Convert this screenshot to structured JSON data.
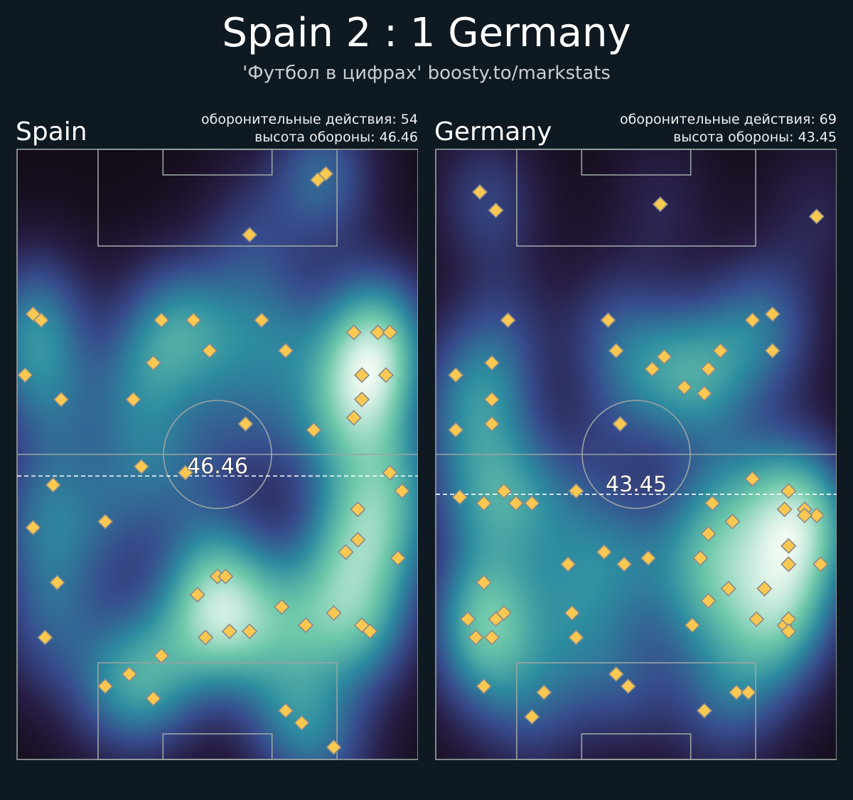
{
  "header": {
    "title": "Spain 2 : 1 Germany",
    "subtitle": "'Футбол в цифрах' boosty.to/markstats"
  },
  "colors": {
    "background": "#0f1921",
    "marker_fill": "#f8c851",
    "marker_edge": "#8a8a8a",
    "pitch_lines": "#9aa3a3",
    "defence_line": "#ffffff",
    "heatmap_low": "#130c17",
    "heatmap_mid": "#2d9f9e",
    "heatmap_high": "#f2fbf4"
  },
  "chart_data": [
    {
      "type": "scatter",
      "team": "Spain",
      "stat_actions_label": "оборонительные действия: 54",
      "stat_height_label": "высота обороны: 46.46",
      "defensive_actions": 54,
      "defence_height": 46.46,
      "line_label": "46.46",
      "xlim": [
        0,
        100
      ],
      "ylim": [
        0,
        100
      ],
      "heatmap": true,
      "points": [
        [
          77,
          96
        ],
        [
          75,
          95
        ],
        [
          58,
          86
        ],
        [
          4,
          73
        ],
        [
          6,
          72
        ],
        [
          36,
          72
        ],
        [
          44,
          72
        ],
        [
          61,
          72
        ],
        [
          84,
          70
        ],
        [
          90,
          70
        ],
        [
          93,
          70
        ],
        [
          48,
          67
        ],
        [
          67,
          67
        ],
        [
          34,
          65
        ],
        [
          2,
          63
        ],
        [
          86,
          63
        ],
        [
          92,
          63
        ],
        [
          11,
          59
        ],
        [
          29,
          59
        ],
        [
          86,
          59
        ],
        [
          84,
          56
        ],
        [
          57,
          55
        ],
        [
          74,
          54
        ],
        [
          31,
          48
        ],
        [
          42,
          47
        ],
        [
          93,
          47
        ],
        [
          9,
          45
        ],
        [
          96,
          44
        ],
        [
          85,
          41
        ],
        [
          22,
          39
        ],
        [
          4,
          38
        ],
        [
          85,
          36
        ],
        [
          82,
          34
        ],
        [
          95,
          33
        ],
        [
          50,
          30
        ],
        [
          52,
          30
        ],
        [
          10,
          29
        ],
        [
          45,
          27
        ],
        [
          66,
          25
        ],
        [
          79,
          24
        ],
        [
          72,
          22
        ],
        [
          53,
          21
        ],
        [
          58,
          21
        ],
        [
          47,
          20
        ],
        [
          86,
          22
        ],
        [
          88,
          21
        ],
        [
          7,
          20
        ],
        [
          36,
          17
        ],
        [
          28,
          14
        ],
        [
          22,
          12
        ],
        [
          34,
          10
        ],
        [
          67,
          8
        ],
        [
          71,
          6
        ],
        [
          79,
          2
        ]
      ]
    },
    {
      "type": "scatter",
      "team": "Germany",
      "stat_actions_label": "оборонительные действия: 69",
      "stat_height_label": "высота обороны: 43.45",
      "defensive_actions": 69,
      "defence_height": 43.45,
      "line_label": "43.45",
      "xlim": [
        0,
        100
      ],
      "ylim": [
        0,
        100
      ],
      "heatmap": true,
      "points": [
        [
          11,
          93
        ],
        [
          15,
          90
        ],
        [
          56,
          91
        ],
        [
          95,
          89
        ],
        [
          18,
          72
        ],
        [
          43,
          72
        ],
        [
          79,
          72
        ],
        [
          84,
          73
        ],
        [
          45,
          67
        ],
        [
          84,
          67
        ],
        [
          57,
          66
        ],
        [
          71,
          67
        ],
        [
          54,
          64
        ],
        [
          68,
          64
        ],
        [
          5,
          63
        ],
        [
          14,
          65
        ],
        [
          62,
          61
        ],
        [
          67,
          60
        ],
        [
          14,
          59
        ],
        [
          46,
          55
        ],
        [
          5,
          54
        ],
        [
          14,
          55
        ],
        [
          79,
          46
        ],
        [
          88,
          44
        ],
        [
          6,
          43
        ],
        [
          17,
          44
        ],
        [
          35,
          44
        ],
        [
          12,
          42
        ],
        [
          20,
          42
        ],
        [
          24,
          42
        ],
        [
          87,
          41
        ],
        [
          92,
          41
        ],
        [
          69,
          42
        ],
        [
          95,
          40
        ],
        [
          92,
          40
        ],
        [
          74,
          39
        ],
        [
          68,
          37
        ],
        [
          42,
          34
        ],
        [
          47,
          32
        ],
        [
          53,
          33
        ],
        [
          88,
          35
        ],
        [
          88,
          32
        ],
        [
          33,
          32
        ],
        [
          66,
          33
        ],
        [
          96,
          32
        ],
        [
          12,
          29
        ],
        [
          73,
          28
        ],
        [
          82,
          28
        ],
        [
          68,
          26
        ],
        [
          17,
          24
        ],
        [
          8,
          23
        ],
        [
          34,
          24
        ],
        [
          80,
          23
        ],
        [
          87,
          22
        ],
        [
          88,
          23
        ],
        [
          64,
          22
        ],
        [
          15,
          23
        ],
        [
          10,
          20
        ],
        [
          14,
          20
        ],
        [
          35,
          20
        ],
        [
          88,
          21
        ],
        [
          45,
          14
        ],
        [
          48,
          12
        ],
        [
          27,
          11
        ],
        [
          12,
          12
        ],
        [
          75,
          11
        ],
        [
          78,
          11
        ],
        [
          67,
          8
        ],
        [
          24,
          7
        ]
      ]
    }
  ]
}
